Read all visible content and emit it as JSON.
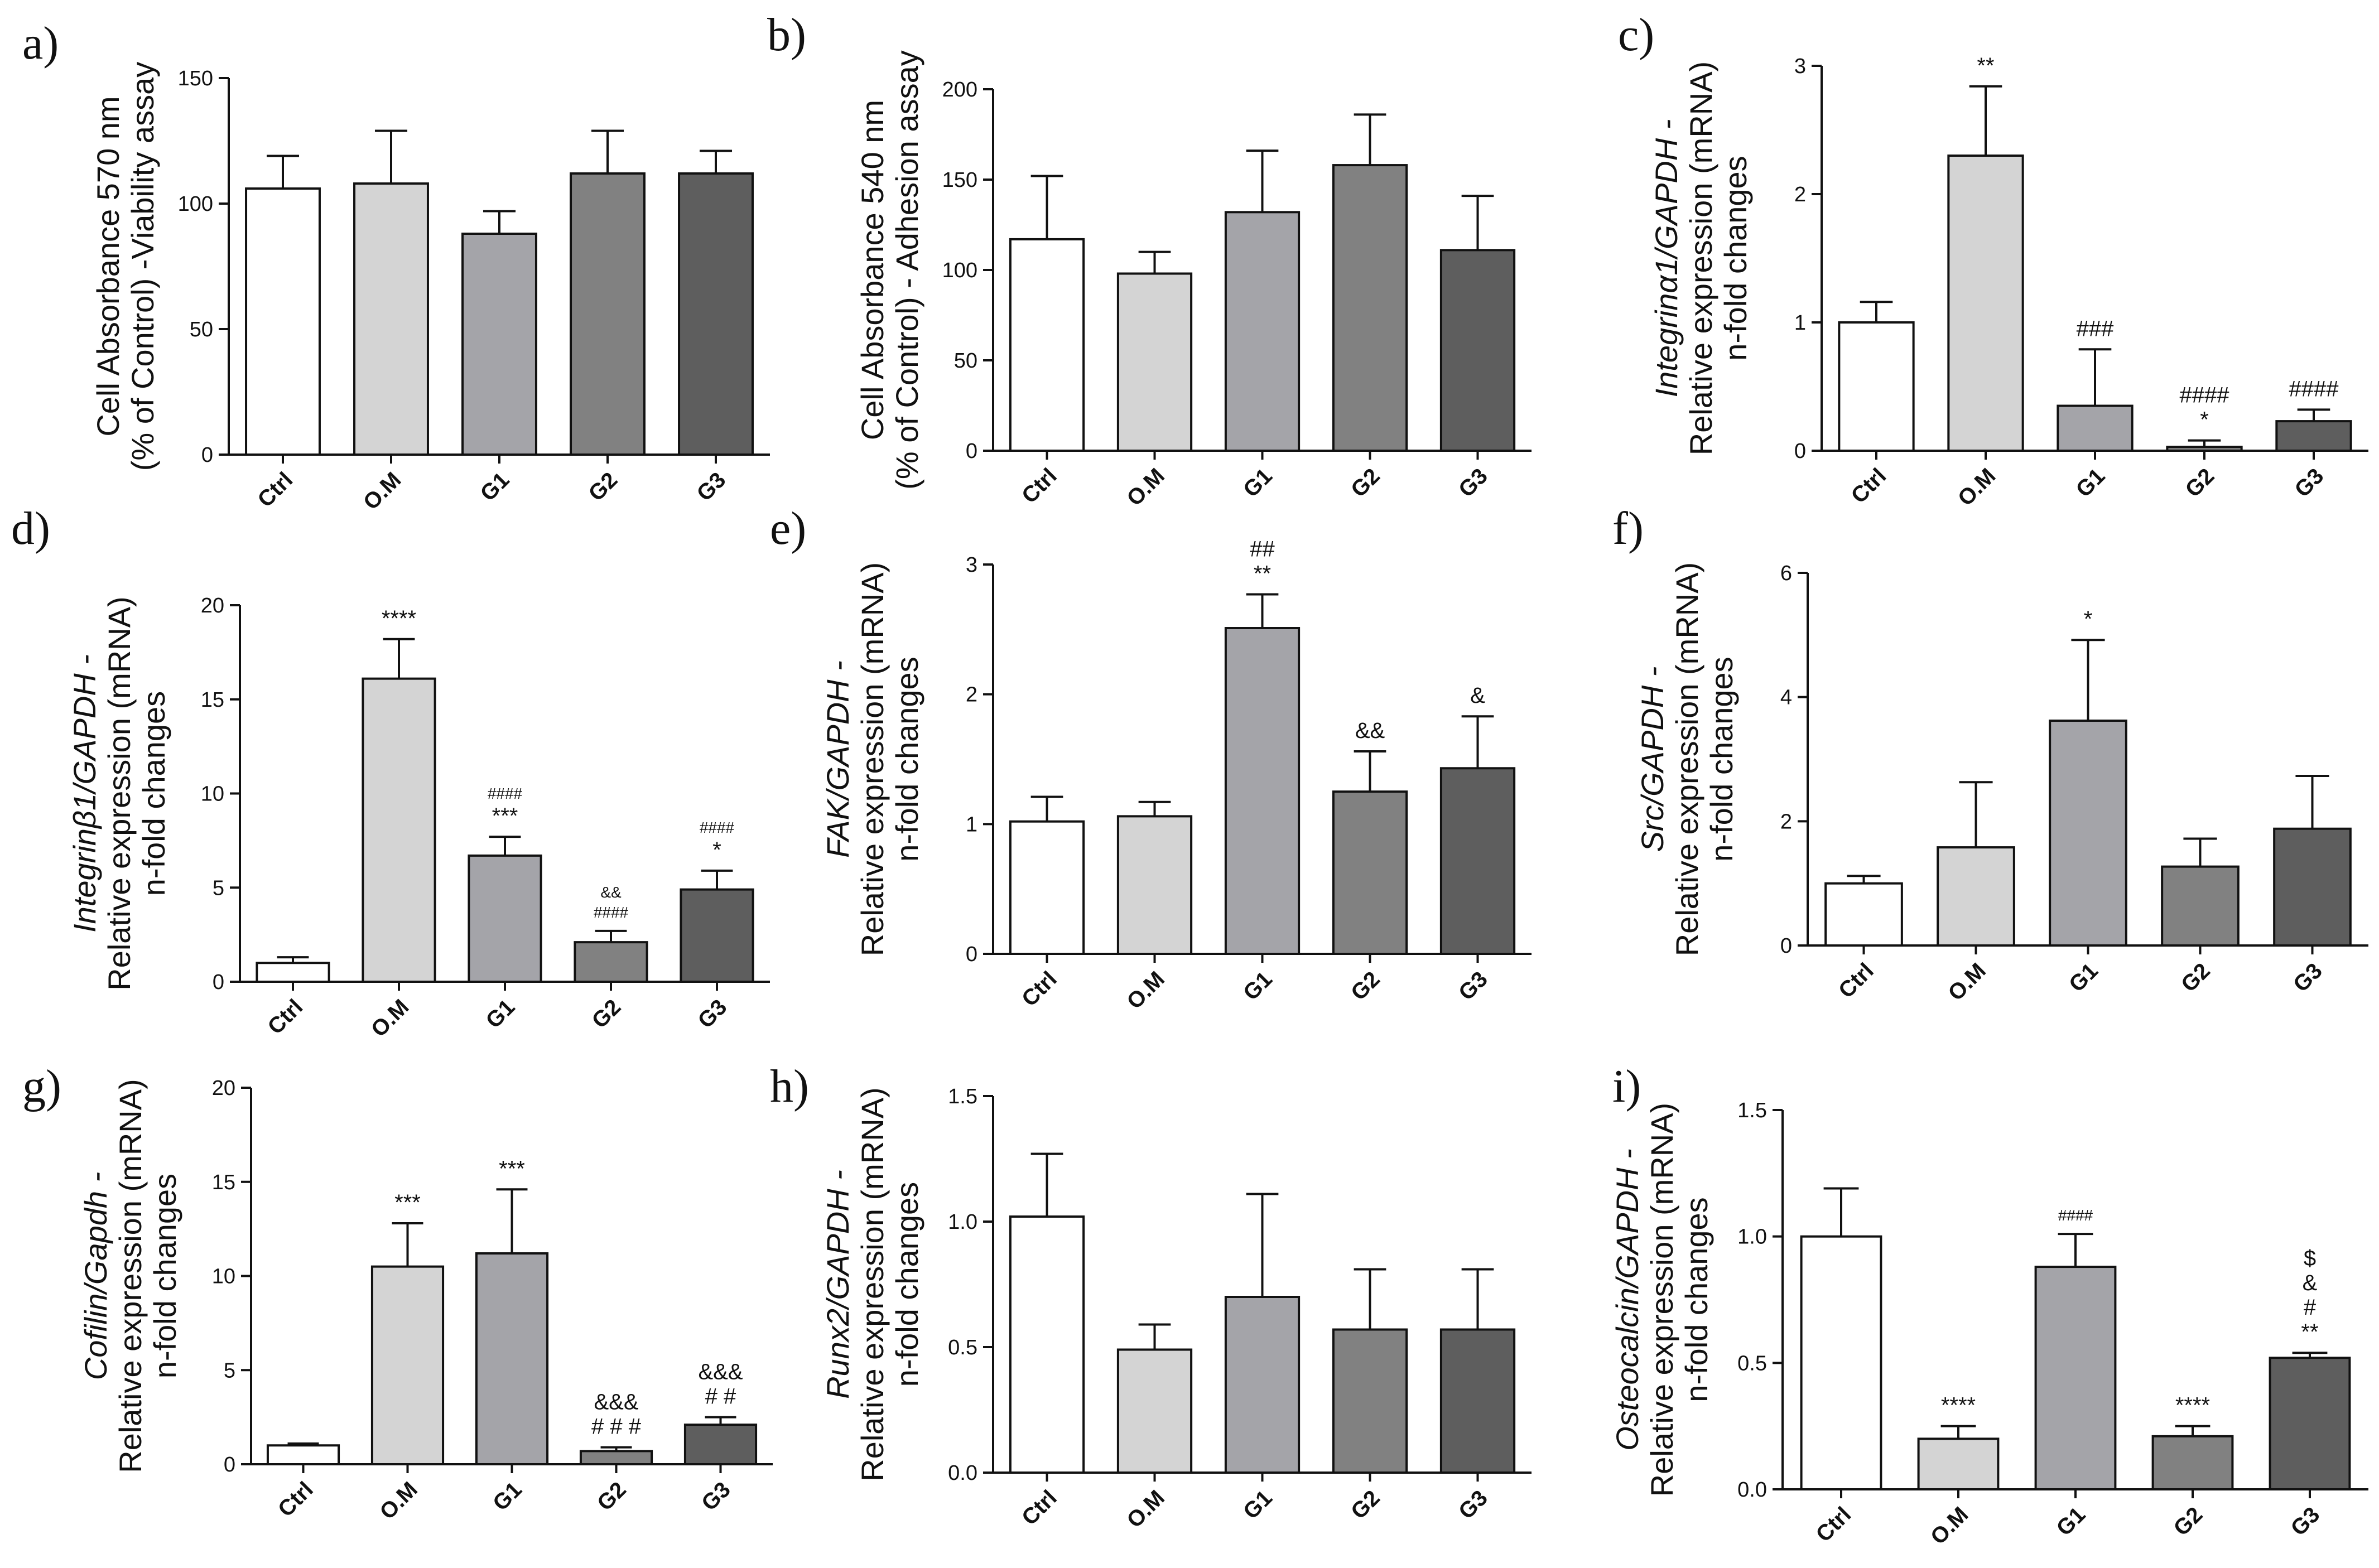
{
  "chart_data": [
    {
      "type": "bar",
      "panel": "a)",
      "ylabel_lines": [
        {
          "text": "Cell Absorbance 570 nm"
        },
        {
          "text": "(% of Control) -Viability assay"
        }
      ],
      "ylim": [
        0,
        150
      ],
      "yticks": [
        0,
        50,
        100,
        150
      ],
      "categories": [
        "Ctrl",
        "O.M",
        "G1",
        "G2",
        "G3"
      ],
      "values": [
        106,
        108,
        88,
        112,
        112
      ],
      "errors": [
        13,
        21,
        9,
        17,
        9
      ],
      "annotations": [
        [],
        [],
        [],
        [],
        []
      ]
    },
    {
      "type": "bar",
      "panel": "b)",
      "ylabel_lines": [
        {
          "text": "Cell Absorbance 540 nm"
        },
        {
          "text": "(% of Control) - Adhesion assay"
        }
      ],
      "ylim": [
        0,
        200
      ],
      "yticks": [
        0,
        50,
        100,
        150,
        200
      ],
      "categories": [
        "Ctrl",
        "O.M",
        "G1",
        "G2",
        "G3"
      ],
      "values": [
        117,
        98,
        132,
        158,
        111
      ],
      "errors": [
        35,
        12,
        34,
        28,
        30
      ],
      "annotations": [
        [],
        [],
        [],
        [],
        []
      ]
    },
    {
      "type": "bar",
      "panel": "c)",
      "ylabel_lines": [
        {
          "text": "Integrinα1/GAPDH -",
          "italic": true
        },
        {
          "text": "Relative expression (mRNA)"
        },
        {
          "text": "n-fold changes"
        }
      ],
      "ylim": [
        0,
        3
      ],
      "yticks": [
        0,
        1,
        2,
        3
      ],
      "categories": [
        "Ctrl",
        "O.M",
        "G1",
        "G2",
        "G3"
      ],
      "values": [
        1.0,
        2.3,
        0.35,
        0.03,
        0.23
      ],
      "errors": [
        0.16,
        0.54,
        0.44,
        0.05,
        0.09
      ],
      "annotations": [
        [],
        [
          "**"
        ],
        [
          "###"
        ],
        [
          "####",
          "*"
        ],
        [
          "####"
        ]
      ]
    },
    {
      "type": "bar",
      "panel": "d)",
      "ylabel_lines": [
        {
          "text": "Integrinβ1/GAPDH -",
          "italic": true
        },
        {
          "text": "Relative expression (mRNA)"
        },
        {
          "text": "n-fold changes"
        }
      ],
      "ylim": [
        0,
        20
      ],
      "yticks": [
        0,
        5,
        10,
        15,
        20
      ],
      "categories": [
        "Ctrl",
        "O.M",
        "G1",
        "G2",
        "G3"
      ],
      "values": [
        1.0,
        16.1,
        6.7,
        2.1,
        4.9
      ],
      "errors": [
        0.3,
        2.1,
        1.0,
        0.6,
        1.0
      ],
      "annotations": [
        [],
        [
          "****"
        ],
        [
          "####",
          "***"
        ],
        [
          "&&",
          "####"
        ],
        [
          "####",
          "*"
        ]
      ]
    },
    {
      "type": "bar",
      "panel": "e)",
      "ylabel_lines": [
        {
          "text": "FAK/GAPDH -",
          "italic": true
        },
        {
          "text": "Relative expression (mRNA)"
        },
        {
          "text": "n-fold changes"
        }
      ],
      "ylim": [
        0,
        3
      ],
      "yticks": [
        0,
        1,
        2,
        3
      ],
      "categories": [
        "Ctrl",
        "O.M",
        "G1",
        "G2",
        "G3"
      ],
      "values": [
        1.02,
        1.06,
        2.51,
        1.25,
        1.43
      ],
      "errors": [
        0.19,
        0.11,
        0.26,
        0.31,
        0.4
      ],
      "annotations": [
        [],
        [],
        [
          "##",
          "**"
        ],
        [
          "&&"
        ],
        [
          "&"
        ]
      ]
    },
    {
      "type": "bar",
      "panel": "f)",
      "ylabel_lines": [
        {
          "text": "Src/GAPDH -",
          "italic": true
        },
        {
          "text": "Relative expression (mRNA)"
        },
        {
          "text": "n-fold changes"
        }
      ],
      "ylim": [
        0,
        6
      ],
      "yticks": [
        0,
        2,
        4,
        6
      ],
      "categories": [
        "Ctrl",
        "O.M",
        "G1",
        "G2",
        "G3"
      ],
      "values": [
        1.0,
        1.58,
        3.62,
        1.27,
        1.88
      ],
      "errors": [
        0.12,
        1.05,
        1.3,
        0.45,
        0.85
      ],
      "annotations": [
        [],
        [],
        [
          "*"
        ],
        [],
        []
      ]
    },
    {
      "type": "bar",
      "panel": "g)",
      "ylabel_lines": [
        {
          "text": "Cofilin/Gapdh -",
          "italic": true
        },
        {
          "text": "Relative expression (mRNA)"
        },
        {
          "text": "n-fold changes"
        }
      ],
      "ylim": [
        0,
        20
      ],
      "yticks": [
        0,
        5,
        10,
        15,
        20
      ],
      "categories": [
        "Ctrl",
        "O.M",
        "G1",
        "G2",
        "G3"
      ],
      "values": [
        1.0,
        10.5,
        11.2,
        0.7,
        2.1
      ],
      "errors": [
        0.1,
        2.3,
        3.4,
        0.2,
        0.4
      ],
      "annotations": [
        [],
        [
          "***"
        ],
        [
          "***"
        ],
        [
          "&&&",
          "# # #"
        ],
        [
          "&&&",
          "# #"
        ]
      ]
    },
    {
      "type": "bar",
      "panel": "h)",
      "ylabel_lines": [
        {
          "text": "Runx2/GAPDH -",
          "italic": true
        },
        {
          "text": "Relative expression (mRNA)"
        },
        {
          "text": "n-fold changes"
        }
      ],
      "ylim": [
        0,
        1.5
      ],
      "yticks": [
        0.0,
        0.5,
        1.0,
        1.5
      ],
      "ytick_labels": [
        "0.0",
        "0.5",
        "1.0",
        "1.5"
      ],
      "categories": [
        "Ctrl",
        "O.M",
        "G1",
        "G2",
        "G3"
      ],
      "values": [
        1.02,
        0.49,
        0.7,
        0.57,
        0.57
      ],
      "errors": [
        0.25,
        0.1,
        0.41,
        0.24,
        0.24
      ],
      "annotations": [
        [],
        [],
        [],
        [],
        []
      ]
    },
    {
      "type": "bar",
      "panel": "i)",
      "ylabel_lines": [
        {
          "text": "Osteocalcin/GAPDH -",
          "italic": true
        },
        {
          "text": "Relative expression (mRNA)"
        },
        {
          "text": "n-fold changes"
        }
      ],
      "ylim": [
        0,
        1.5
      ],
      "yticks": [
        0.0,
        0.5,
        1.0,
        1.5
      ],
      "ytick_labels": [
        "0.0",
        "0.5",
        "1.0",
        "1.5"
      ],
      "categories": [
        "Ctrl",
        "O.M",
        "G1",
        "G2",
        "G3"
      ],
      "values": [
        1.0,
        0.2,
        0.88,
        0.21,
        0.52
      ],
      "errors": [
        0.19,
        0.05,
        0.13,
        0.04,
        0.02
      ],
      "annotations": [
        [],
        [
          "****"
        ],
        [
          "####"
        ],
        [
          "****"
        ],
        [
          "$",
          "&",
          "#",
          "**"
        ]
      ]
    }
  ],
  "bar_colors": [
    "#ffffff",
    "#d4d4d4",
    "#a4a4a9",
    "#818181",
    "#5e5e5e"
  ]
}
